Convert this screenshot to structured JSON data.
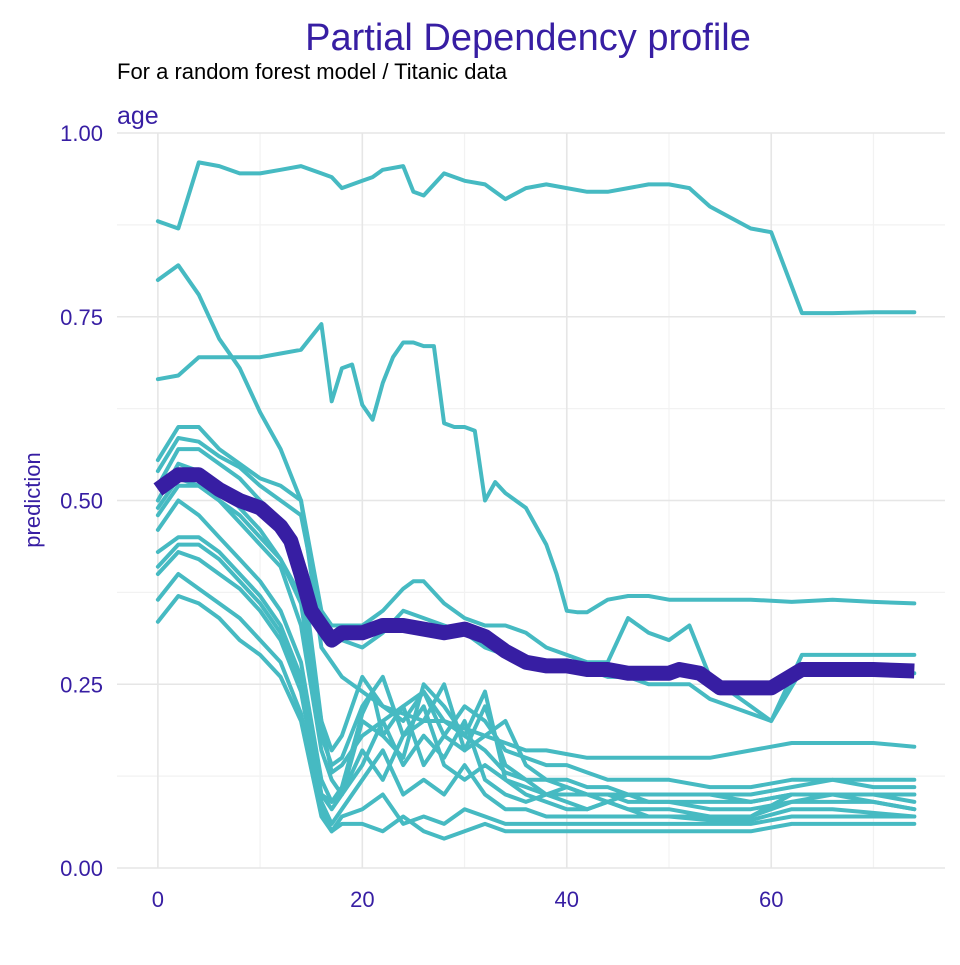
{
  "chart_data": {
    "type": "line",
    "title": "Partial Dependency profile",
    "subtitle": "For a random forest model / Titanic data",
    "panel_label": "age",
    "xlabel": "",
    "ylabel": "prediction",
    "xlim": [
      -4,
      77
    ],
    "ylim": [
      0,
      1
    ],
    "x_ticks": [
      0,
      20,
      40,
      60
    ],
    "x_tick_labels": [
      "0",
      "20",
      "40",
      "60"
    ],
    "y_ticks": [
      0,
      0.25,
      0.5,
      0.75,
      1
    ],
    "y_tick_labels": [
      "0.00",
      "0.25",
      "0.50",
      "0.75",
      "1.00"
    ],
    "grid": true,
    "legend": "none",
    "colors": {
      "title": "#371ea3",
      "axis_text": "#371ea3",
      "subtitle": "#000000",
      "profile_lines": "#46bac2",
      "average_line": "#371ea3",
      "grid_major": "#e6e6e6",
      "grid_minor": "#f2f2f2"
    },
    "average_profile": {
      "x": [
        0,
        2,
        4,
        6,
        8,
        10,
        12,
        13,
        14,
        15,
        16,
        17,
        18,
        20,
        22,
        24,
        26,
        28,
        30,
        32,
        34,
        36,
        38,
        40,
        42,
        44,
        46,
        48,
        50,
        51,
        53,
        54,
        55,
        57,
        60,
        63,
        67,
        70,
        74
      ],
      "y": [
        0.515,
        0.535,
        0.535,
        0.515,
        0.5,
        0.49,
        0.465,
        0.445,
        0.4,
        0.35,
        0.33,
        0.31,
        0.32,
        0.32,
        0.33,
        0.33,
        0.325,
        0.32,
        0.325,
        0.315,
        0.295,
        0.28,
        0.275,
        0.275,
        0.27,
        0.27,
        0.265,
        0.265,
        0.265,
        0.27,
        0.265,
        0.255,
        0.245,
        0.245,
        0.245,
        0.27,
        0.27,
        0.27,
        0.268
      ]
    },
    "individual_profiles": [
      {
        "x": [
          0,
          2,
          4,
          6,
          8,
          10,
          12,
          14,
          16,
          17,
          18,
          20,
          21,
          22,
          24,
          25,
          26,
          28,
          30,
          32,
          34,
          36,
          38,
          40,
          42,
          44,
          46,
          48,
          50,
          52,
          54,
          56,
          58,
          60,
          63,
          66,
          70,
          74
        ],
        "y": [
          0.88,
          0.87,
          0.96,
          0.955,
          0.945,
          0.945,
          0.95,
          0.955,
          0.945,
          0.94,
          0.925,
          0.935,
          0.94,
          0.95,
          0.955,
          0.92,
          0.915,
          0.945,
          0.935,
          0.93,
          0.91,
          0.925,
          0.93,
          0.925,
          0.92,
          0.92,
          0.925,
          0.93,
          0.93,
          0.925,
          0.9,
          0.885,
          0.87,
          0.865,
          0.755,
          0.755,
          0.756,
          0.756
        ]
      },
      {
        "x": [
          0,
          2,
          4,
          6,
          8,
          10,
          12,
          14,
          16,
          17,
          18,
          20,
          21,
          22,
          24,
          26,
          28,
          30,
          32,
          34,
          36,
          38,
          40,
          42,
          44,
          46,
          48,
          50,
          54,
          58,
          62,
          66,
          70,
          74
        ],
        "y": [
          0.8,
          0.82,
          0.78,
          0.72,
          0.68,
          0.62,
          0.57,
          0.5,
          0.3,
          0.28,
          0.26,
          0.24,
          0.23,
          0.22,
          0.21,
          0.2,
          0.2,
          0.19,
          0.18,
          0.17,
          0.16,
          0.16,
          0.155,
          0.15,
          0.15,
          0.15,
          0.15,
          0.15,
          0.15,
          0.16,
          0.17,
          0.17,
          0.17,
          0.165
        ]
      },
      {
        "x": [
          0,
          2,
          4,
          6,
          8,
          10,
          12,
          14,
          16,
          17,
          18,
          19,
          20,
          21,
          22,
          23,
          24,
          25,
          26,
          27,
          28,
          29,
          30,
          31,
          32,
          33,
          34,
          36,
          38,
          39,
          40,
          41,
          42,
          44,
          46,
          48,
          50,
          54,
          58,
          62,
          66,
          70,
          74
        ],
        "y": [
          0.665,
          0.67,
          0.695,
          0.695,
          0.695,
          0.695,
          0.7,
          0.705,
          0.74,
          0.635,
          0.68,
          0.685,
          0.63,
          0.61,
          0.66,
          0.695,
          0.715,
          0.715,
          0.71,
          0.71,
          0.605,
          0.6,
          0.6,
          0.595,
          0.5,
          0.525,
          0.51,
          0.49,
          0.44,
          0.4,
          0.35,
          0.348,
          0.348,
          0.365,
          0.37,
          0.37,
          0.365,
          0.365,
          0.365,
          0.362,
          0.365,
          0.362,
          0.36
        ]
      },
      {
        "x": [
          0,
          2,
          4,
          6,
          8,
          10,
          12,
          14,
          16,
          17,
          18,
          20,
          22,
          24,
          25,
          26,
          28,
          30,
          32,
          34,
          36,
          38,
          40,
          42,
          44,
          46,
          48,
          50,
          52,
          54,
          56,
          58,
          60,
          63,
          66,
          70,
          74
        ],
        "y": [
          0.555,
          0.6,
          0.6,
          0.57,
          0.55,
          0.53,
          0.52,
          0.5,
          0.35,
          0.33,
          0.33,
          0.33,
          0.35,
          0.38,
          0.39,
          0.39,
          0.36,
          0.34,
          0.33,
          0.33,
          0.32,
          0.3,
          0.29,
          0.28,
          0.28,
          0.34,
          0.32,
          0.31,
          0.33,
          0.26,
          0.24,
          0.22,
          0.2,
          0.29,
          0.29,
          0.29,
          0.29
        ]
      },
      {
        "x": [
          0,
          2,
          4,
          6,
          8,
          10,
          12,
          14,
          16,
          17,
          18,
          20,
          22,
          24,
          26,
          28,
          30,
          32,
          34,
          36,
          38,
          40,
          42,
          44,
          46,
          48,
          50,
          52,
          54,
          56,
          58,
          60,
          63,
          66,
          70,
          74
        ],
        "y": [
          0.54,
          0.585,
          0.58,
          0.56,
          0.545,
          0.52,
          0.5,
          0.48,
          0.34,
          0.32,
          0.31,
          0.3,
          0.32,
          0.35,
          0.34,
          0.33,
          0.32,
          0.3,
          0.29,
          0.28,
          0.28,
          0.27,
          0.27,
          0.26,
          0.26,
          0.25,
          0.25,
          0.25,
          0.23,
          0.22,
          0.21,
          0.2,
          0.27,
          0.265,
          0.265,
          0.265
        ]
      },
      {
        "x": [
          0,
          2,
          4,
          6,
          8,
          10,
          12,
          14,
          16,
          17,
          18,
          20,
          22,
          24,
          26,
          28,
          30,
          32,
          34,
          36,
          38,
          40,
          42,
          44,
          46,
          48,
          50,
          54,
          58,
          62,
          66,
          70,
          74
        ],
        "y": [
          0.5,
          0.55,
          0.54,
          0.52,
          0.49,
          0.46,
          0.42,
          0.37,
          0.2,
          0.13,
          0.14,
          0.18,
          0.2,
          0.22,
          0.24,
          0.2,
          0.18,
          0.16,
          0.13,
          0.12,
          0.12,
          0.11,
          0.1,
          0.1,
          0.09,
          0.09,
          0.09,
          0.08,
          0.08,
          0.09,
          0.1,
          0.1,
          0.1
        ]
      },
      {
        "x": [
          0,
          2,
          4,
          6,
          8,
          10,
          12,
          14,
          16,
          17,
          18,
          20,
          22,
          24,
          26,
          28,
          30,
          32,
          34,
          36,
          38,
          40,
          42,
          44,
          46,
          48,
          50,
          54,
          58,
          62,
          66,
          70,
          74
        ],
        "y": [
          0.48,
          0.52,
          0.52,
          0.5,
          0.47,
          0.44,
          0.41,
          0.33,
          0.16,
          0.12,
          0.1,
          0.14,
          0.2,
          0.14,
          0.18,
          0.15,
          0.2,
          0.12,
          0.1,
          0.09,
          0.1,
          0.09,
          0.08,
          0.09,
          0.08,
          0.08,
          0.08,
          0.07,
          0.07,
          0.09,
          0.09,
          0.09,
          0.08
        ]
      },
      {
        "x": [
          0,
          2,
          4,
          6,
          8,
          10,
          12,
          14,
          16,
          17,
          18,
          20,
          21,
          22,
          24,
          26,
          28,
          30,
          32,
          34,
          36,
          38,
          40,
          42,
          44,
          46,
          48,
          50,
          54,
          58,
          62,
          66,
          70,
          74
        ],
        "y": [
          0.46,
          0.5,
          0.48,
          0.45,
          0.42,
          0.39,
          0.35,
          0.28,
          0.12,
          0.09,
          0.11,
          0.21,
          0.24,
          0.18,
          0.15,
          0.25,
          0.22,
          0.18,
          0.24,
          0.12,
          0.1,
          0.09,
          0.08,
          0.08,
          0.09,
          0.08,
          0.07,
          0.07,
          0.065,
          0.065,
          0.08,
          0.08,
          0.075,
          0.07
        ]
      },
      {
        "x": [
          0,
          2,
          4,
          6,
          8,
          10,
          12,
          14,
          16,
          17,
          18,
          20,
          22,
          24,
          26,
          28,
          30,
          32,
          34,
          36,
          38,
          40,
          42,
          44,
          46,
          48,
          50,
          54,
          58,
          62,
          66,
          70,
          74
        ],
        "y": [
          0.43,
          0.45,
          0.45,
          0.43,
          0.4,
          0.37,
          0.33,
          0.26,
          0.1,
          0.08,
          0.1,
          0.2,
          0.18,
          0.22,
          0.14,
          0.18,
          0.16,
          0.22,
          0.14,
          0.12,
          0.1,
          0.11,
          0.1,
          0.1,
          0.1,
          0.1,
          0.1,
          0.1,
          0.1,
          0.11,
          0.12,
          0.11,
          0.11
        ]
      },
      {
        "x": [
          0,
          2,
          4,
          6,
          8,
          10,
          12,
          14,
          16,
          17,
          18,
          20,
          22,
          24,
          26,
          28,
          30,
          32,
          34,
          36,
          38,
          40,
          42,
          44,
          46,
          48,
          50,
          54,
          58,
          62,
          66,
          70,
          74
        ],
        "y": [
          0.41,
          0.44,
          0.44,
          0.42,
          0.39,
          0.36,
          0.32,
          0.25,
          0.1,
          0.09,
          0.1,
          0.16,
          0.12,
          0.18,
          0.22,
          0.14,
          0.12,
          0.14,
          0.12,
          0.11,
          0.1,
          0.1,
          0.1,
          0.09,
          0.1,
          0.09,
          0.09,
          0.09,
          0.09,
          0.1,
          0.1,
          0.1,
          0.09
        ]
      },
      {
        "x": [
          0,
          2,
          4,
          6,
          8,
          10,
          12,
          14,
          16,
          17,
          18,
          20,
          22,
          24,
          26,
          28,
          30,
          32,
          34,
          36,
          38,
          40,
          42,
          44,
          46,
          48,
          50,
          54,
          58,
          62,
          66,
          70,
          74
        ],
        "y": [
          0.4,
          0.43,
          0.42,
          0.4,
          0.38,
          0.35,
          0.31,
          0.24,
          0.09,
          0.06,
          0.08,
          0.12,
          0.16,
          0.1,
          0.12,
          0.1,
          0.14,
          0.1,
          0.08,
          0.08,
          0.07,
          0.07,
          0.07,
          0.07,
          0.07,
          0.07,
          0.07,
          0.07,
          0.07,
          0.1,
          0.1,
          0.09,
          0.08
        ]
      },
      {
        "x": [
          0,
          2,
          4,
          6,
          8,
          10,
          12,
          14,
          16,
          17,
          18,
          20,
          22,
          24,
          26,
          28,
          30,
          32,
          34,
          36,
          38,
          40,
          42,
          44,
          46,
          48,
          50,
          54,
          58,
          62,
          66,
          70,
          74
        ],
        "y": [
          0.365,
          0.4,
          0.38,
          0.36,
          0.34,
          0.31,
          0.28,
          0.21,
          0.08,
          0.05,
          0.07,
          0.08,
          0.1,
          0.06,
          0.07,
          0.06,
          0.08,
          0.07,
          0.06,
          0.06,
          0.06,
          0.06,
          0.06,
          0.06,
          0.06,
          0.06,
          0.06,
          0.06,
          0.06,
          0.07,
          0.07,
          0.07,
          0.07
        ]
      },
      {
        "x": [
          0,
          2,
          4,
          6,
          8,
          10,
          12,
          14,
          16,
          17,
          18,
          20,
          22,
          24,
          26,
          28,
          30,
          32,
          34,
          36,
          38,
          40,
          42,
          44,
          46,
          48,
          50,
          54,
          58,
          62,
          66,
          70,
          74
        ],
        "y": [
          0.335,
          0.37,
          0.36,
          0.34,
          0.31,
          0.29,
          0.26,
          0.2,
          0.07,
          0.05,
          0.06,
          0.06,
          0.05,
          0.07,
          0.05,
          0.04,
          0.05,
          0.06,
          0.05,
          0.05,
          0.05,
          0.05,
          0.05,
          0.05,
          0.05,
          0.05,
          0.05,
          0.05,
          0.05,
          0.06,
          0.06,
          0.06,
          0.06
        ]
      },
      {
        "x": [
          0,
          2,
          4,
          6,
          8,
          10,
          12,
          14,
          16,
          17,
          18,
          20,
          22,
          24,
          26,
          28,
          30,
          32,
          34,
          36,
          38,
          40,
          42,
          44,
          46,
          48,
          50,
          54,
          58,
          62,
          66,
          70,
          74
        ],
        "y": [
          0.52,
          0.57,
          0.57,
          0.55,
          0.53,
          0.5,
          0.47,
          0.42,
          0.2,
          0.16,
          0.18,
          0.26,
          0.22,
          0.2,
          0.24,
          0.18,
          0.22,
          0.2,
          0.16,
          0.15,
          0.14,
          0.14,
          0.13,
          0.12,
          0.12,
          0.12,
          0.12,
          0.11,
          0.11,
          0.12,
          0.12,
          0.12,
          0.12
        ]
      },
      {
        "x": [
          0,
          2,
          4,
          6,
          8,
          10,
          12,
          14,
          16,
          17,
          18,
          20,
          22,
          24,
          26,
          28,
          30,
          32,
          34,
          36,
          38,
          40,
          42,
          44,
          46,
          48,
          50,
          54,
          58,
          62,
          66,
          70,
          74
        ],
        "y": [
          0.49,
          0.53,
          0.52,
          0.5,
          0.48,
          0.45,
          0.42,
          0.36,
          0.18,
          0.14,
          0.15,
          0.22,
          0.26,
          0.18,
          0.2,
          0.25,
          0.16,
          0.18,
          0.2,
          0.14,
          0.12,
          0.12,
          0.11,
          0.11,
          0.1,
          0.1,
          0.1,
          0.1,
          0.09,
          0.1,
          0.1,
          0.1,
          0.1
        ]
      }
    ]
  }
}
